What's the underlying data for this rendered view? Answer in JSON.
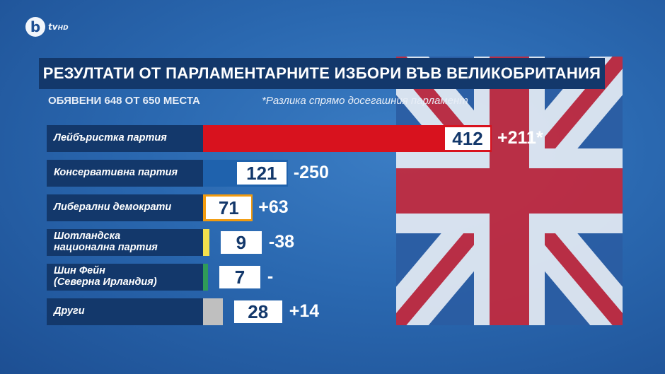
{
  "channel": {
    "logo_letter": "b",
    "logo_text": "tv",
    "logo_hd": "HD"
  },
  "header": {
    "title": "РЕЗУЛТАТИ ОТ ПАРЛАМЕНТАРНИТЕ ИЗБОРИ ВЪВ ВЕЛИКОБРИТАНИЯ",
    "subtitle": "ОБЯВЕНИ 648 ОТ 650 МЕСТА",
    "footnote": "*Разлика спрямо досегашния парламент"
  },
  "colors": {
    "labour": "#d8121e",
    "conservative": "#1f62ad",
    "libdem": "#f29b0f",
    "snp": "#f4e04d",
    "sinnfein": "#2f9b58",
    "others": "#bfbfbf",
    "panel": "#13386b"
  },
  "chart_data": {
    "type": "bar",
    "orientation": "horizontal",
    "title": "РЕЗУЛТАТИ ОТ ПАРЛАМЕНТАРНИТЕ ИЗБОРИ ВЪВ ВЕЛИКОБРИТАНИЯ",
    "subtitle": "ОБЯВЕНИ 648 ОТ 650 МЕСТА",
    "categories": [
      "Лейбъристка партия",
      "Консервативна партия",
      "Либерални демократи",
      "Шотландска\nнационална партия",
      "Шин Фейн\n(Северна Ирландия)",
      "Други"
    ],
    "values": [
      412,
      121,
      71,
      9,
      7,
      28
    ],
    "value_labels": [
      "412",
      "121",
      "71",
      "9",
      "7",
      "28"
    ],
    "change_labels": [
      "+211*",
      "-250",
      "+63",
      "-38",
      "-",
      "+14"
    ],
    "bar_colors": [
      "#d8121e",
      "#1f62ad",
      "#f29b0f",
      "#f4e04d",
      "#2f9b58",
      "#bfbfbf"
    ],
    "xlim": [
      0,
      412
    ]
  }
}
